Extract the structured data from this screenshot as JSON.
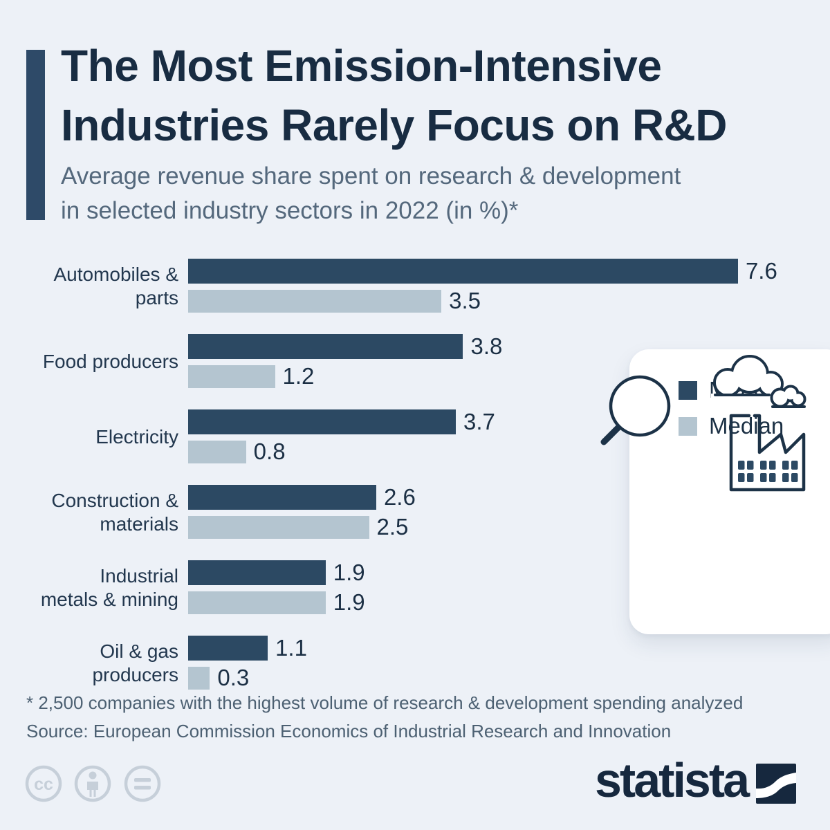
{
  "header": {
    "title_line1": "The Most Emission-Intensive",
    "title_line2": "Industries Rarely Focus on R&D",
    "subtitle_line1": "Average revenue share spent on research & development",
    "subtitle_line2": "in selected industry sectors in 2022 (in %)*"
  },
  "chart_data": {
    "type": "bar",
    "orientation": "horizontal",
    "title": "Average revenue share spent on research & development in selected industry sectors in 2022 (in %)",
    "xlabel": "",
    "ylabel": "",
    "xlim": [
      0,
      8.7
    ],
    "grid": false,
    "value_labels": true,
    "categories": [
      "Automobiles & parts",
      "Food producers",
      "Electricity",
      "Construction & materials",
      "Industrial metals & mining",
      "Oil & gas producers"
    ],
    "category_lines": [
      [
        "Automobiles &",
        "parts"
      ],
      [
        "Food producers"
      ],
      [
        "Electricity"
      ],
      [
        "Construction &",
        "materials"
      ],
      [
        "Industrial",
        "metals & mining"
      ],
      [
        "Oil & gas",
        "producers"
      ]
    ],
    "series": [
      {
        "name": "Mean",
        "color": "#2c4963",
        "values": [
          7.6,
          3.8,
          3.7,
          2.6,
          1.9,
          1.1
        ]
      },
      {
        "name": "Median",
        "color": "#b4c5d0",
        "values": [
          3.5,
          1.2,
          0.8,
          2.5,
          1.9,
          0.3
        ]
      }
    ]
  },
  "legend": {
    "position": "right-card",
    "items": [
      {
        "label": "Mean",
        "color": "#2c4963"
      },
      {
        "label": "Median",
        "color": "#b4c5d0"
      }
    ]
  },
  "footer": {
    "footnote": "* 2,500 companies with the highest volume of research & development spending analyzed",
    "source": "Source: European Commission Economics of Industrial Research and Innovation",
    "brand": "statista"
  },
  "icons": {
    "card": [
      "magnifier-icon",
      "cloud-icon",
      "small-cloud-icon",
      "factory-icon"
    ],
    "footer": [
      "cc-icon",
      "cc-attribution-icon",
      "cc-nd-icon",
      "statista-logo-icon"
    ]
  },
  "colors": {
    "background": "#edf1f7",
    "accent_bar": "#2e4a68",
    "title": "#182c42",
    "subtitle": "#54687c",
    "bar_mean": "#2c4963",
    "bar_median": "#b4c5d0",
    "value_text": "#1b2f44",
    "icon_stroke": "#1c3247",
    "cc_gray": "#c6cfd9",
    "card": "#ffffff"
  }
}
